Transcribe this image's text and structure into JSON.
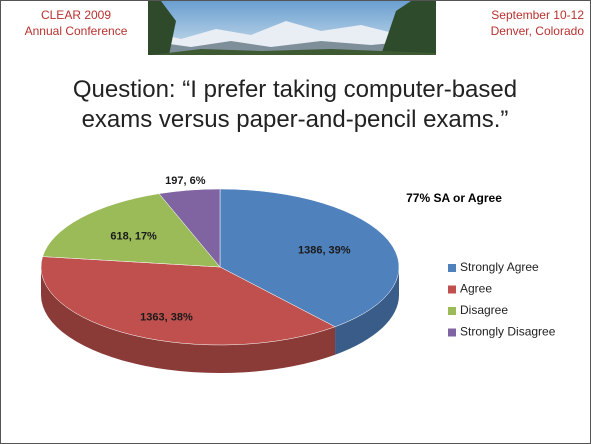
{
  "header": {
    "left": [
      "CLEAR 2009",
      "Annual Conference"
    ],
    "right": [
      "September 10-12",
      "Denver, Colorado"
    ]
  },
  "chart_data": {
    "type": "pie",
    "title": [
      "Question: “I prefer taking computer-based",
      "exams versus paper-and-pencil exams.”"
    ],
    "annotation": "77% SA or Agree",
    "categories": [
      "Strongly Agree",
      "Agree",
      "Disagree",
      "Strongly Disagree"
    ],
    "values": [
      1386,
      1363,
      618,
      197
    ],
    "value_labels": [
      "1386, 39%",
      "1363, 38%",
      "618, 17%",
      "197, 6%"
    ],
    "colors": [
      "#4f81bd",
      "#c0504d",
      "#9bbb59",
      "#8064a2"
    ],
    "legend": "right"
  }
}
